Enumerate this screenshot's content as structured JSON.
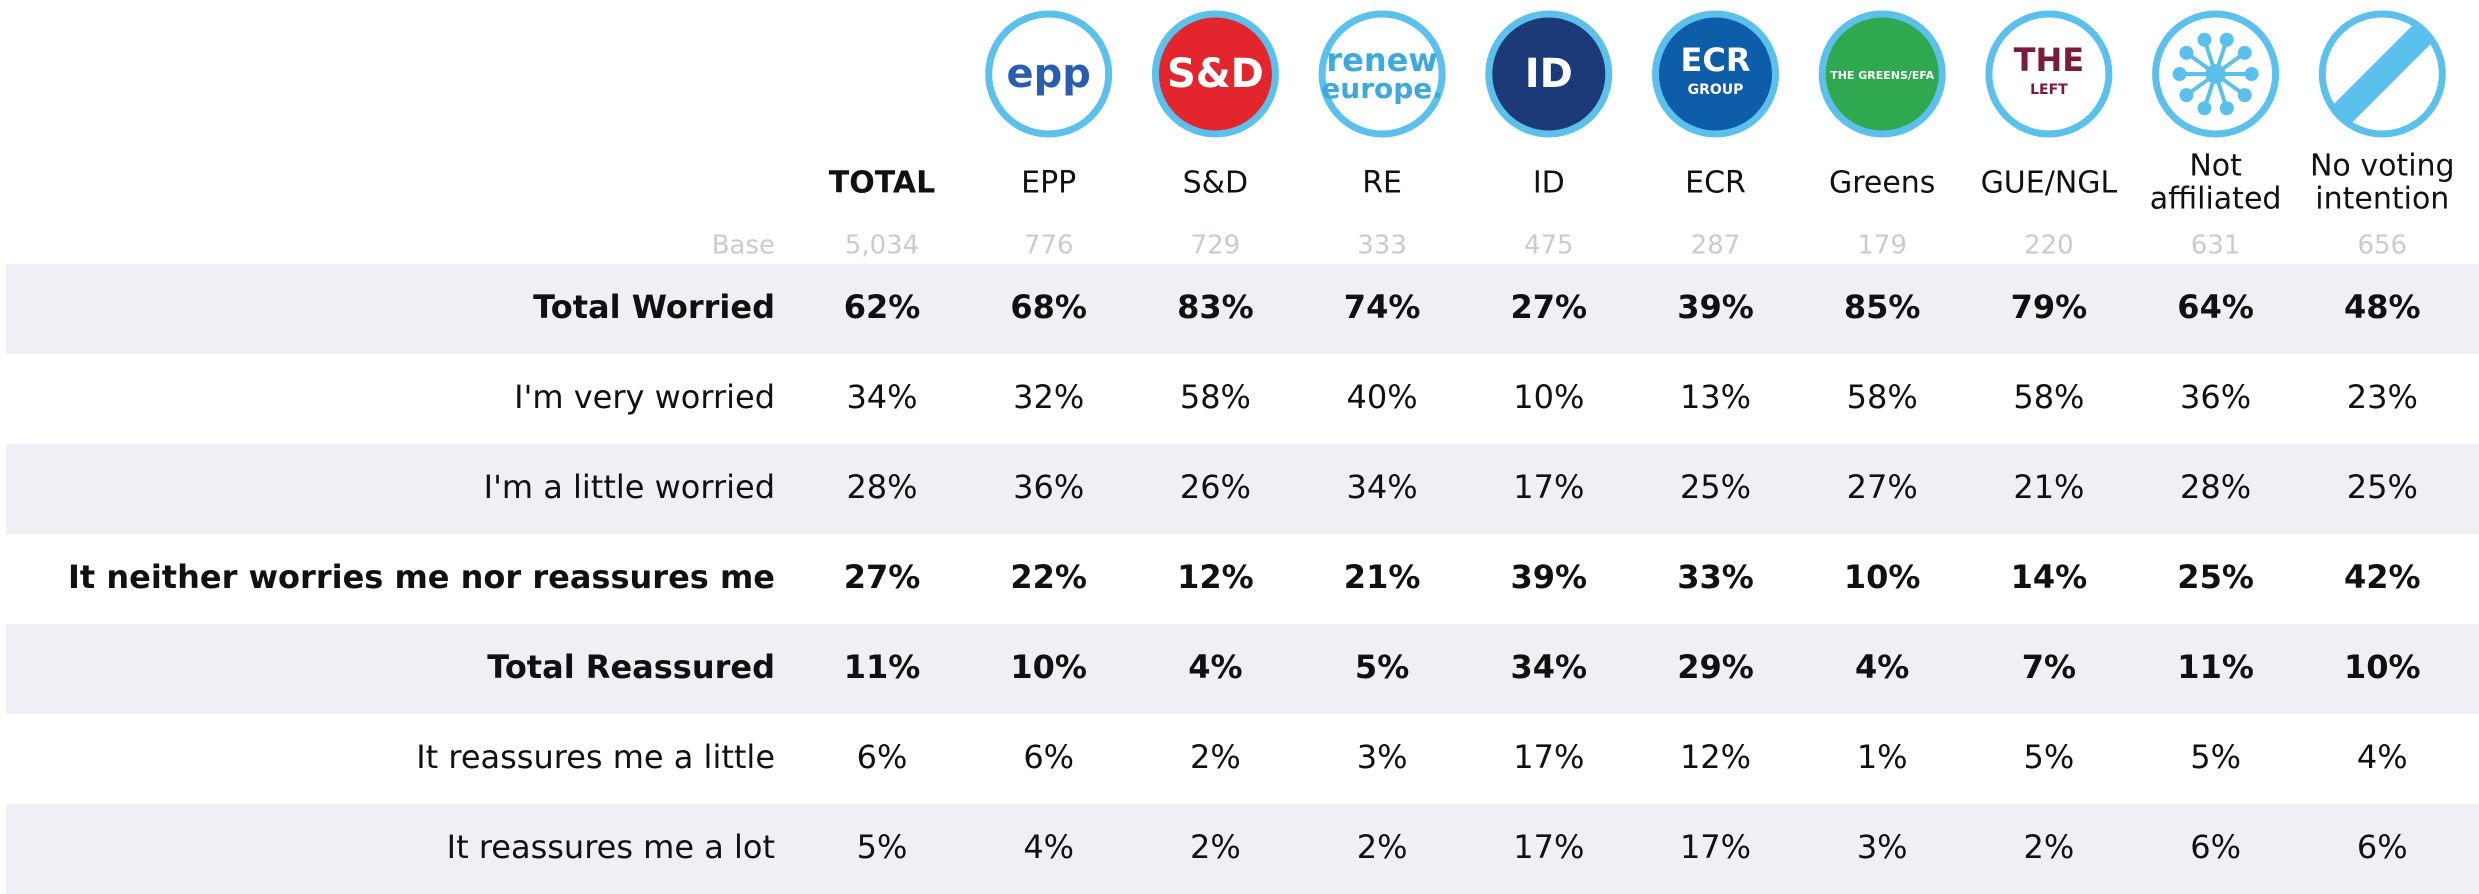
{
  "table": {
    "columns": [
      {
        "lines": [
          "TOTAL"
        ],
        "bold": true
      },
      {
        "lines": [
          "EPP"
        ],
        "logo": [
          "epp"
        ],
        "fill": "#ffffff",
        "ink": "#2a5db0"
      },
      {
        "lines": [
          "S&D"
        ],
        "logo": [
          "S&D"
        ],
        "fill": "#e3262e",
        "ink": "#ffffff"
      },
      {
        "lines": [
          "RE"
        ],
        "logo": [
          "renew",
          "europe."
        ],
        "fill": "#ffffff",
        "ink": "#3fa9dd"
      },
      {
        "lines": [
          "ID"
        ],
        "logo": [
          "ID"
        ],
        "fill": "#1d3a78",
        "ink": "#ffffff"
      },
      {
        "lines": [
          "ECR"
        ],
        "logo": [
          "ECR",
          "GROUP"
        ],
        "fill": "#0e5da8",
        "ink": "#ffffff"
      },
      {
        "lines": [
          "Greens"
        ],
        "logo": [
          "THE GREENS/EFA"
        ],
        "fill": "#2fa84f",
        "ink": "#ffffff"
      },
      {
        "lines": [
          "GUE/NGL"
        ],
        "logo": [
          "THE",
          "LEFT"
        ],
        "fill": "#ffffff",
        "ink": "#7a1b3c"
      },
      {
        "lines": [
          "Not",
          "affiliated"
        ],
        "icon": "star",
        "fill": "#ffffff",
        "ink": "#5bc0eb"
      },
      {
        "lines": [
          "No voting",
          "intention"
        ],
        "icon": "slash",
        "fill": "#ffffff",
        "ink": "#5bc0eb"
      }
    ],
    "base": {
      "label": "Base",
      "values": [
        "5,034",
        "776",
        "729",
        "333",
        "475",
        "287",
        "179",
        "220",
        "631",
        "656"
      ]
    },
    "rows": [
      {
        "label": "Total Worried",
        "bold": true,
        "values": [
          "62%",
          "68%",
          "83%",
          "74%",
          "27%",
          "39%",
          "85%",
          "79%",
          "64%",
          "48%"
        ]
      },
      {
        "label": "I'm very worried",
        "bold": false,
        "values": [
          "34%",
          "32%",
          "58%",
          "40%",
          "10%",
          "13%",
          "58%",
          "58%",
          "36%",
          "23%"
        ]
      },
      {
        "label": "I'm a little worried",
        "bold": false,
        "values": [
          "28%",
          "36%",
          "26%",
          "34%",
          "17%",
          "25%",
          "27%",
          "21%",
          "28%",
          "25%"
        ]
      },
      {
        "label": "It neither worries me nor reassures me",
        "bold": true,
        "values": [
          "27%",
          "22%",
          "12%",
          "21%",
          "39%",
          "33%",
          "10%",
          "14%",
          "25%",
          "42%"
        ]
      },
      {
        "label": "Total Reassured",
        "bold": true,
        "values": [
          "11%",
          "10%",
          "4%",
          "5%",
          "34%",
          "29%",
          "4%",
          "7%",
          "11%",
          "10%"
        ]
      },
      {
        "label": "It reassures me a little",
        "bold": false,
        "values": [
          "6%",
          "6%",
          "2%",
          "3%",
          "17%",
          "12%",
          "1%",
          "5%",
          "5%",
          "4%"
        ]
      },
      {
        "label": "It reassures me a lot",
        "bold": false,
        "values": [
          "5%",
          "4%",
          "2%",
          "2%",
          "17%",
          "17%",
          "3%",
          "2%",
          "6%",
          "6%"
        ]
      }
    ]
  }
}
